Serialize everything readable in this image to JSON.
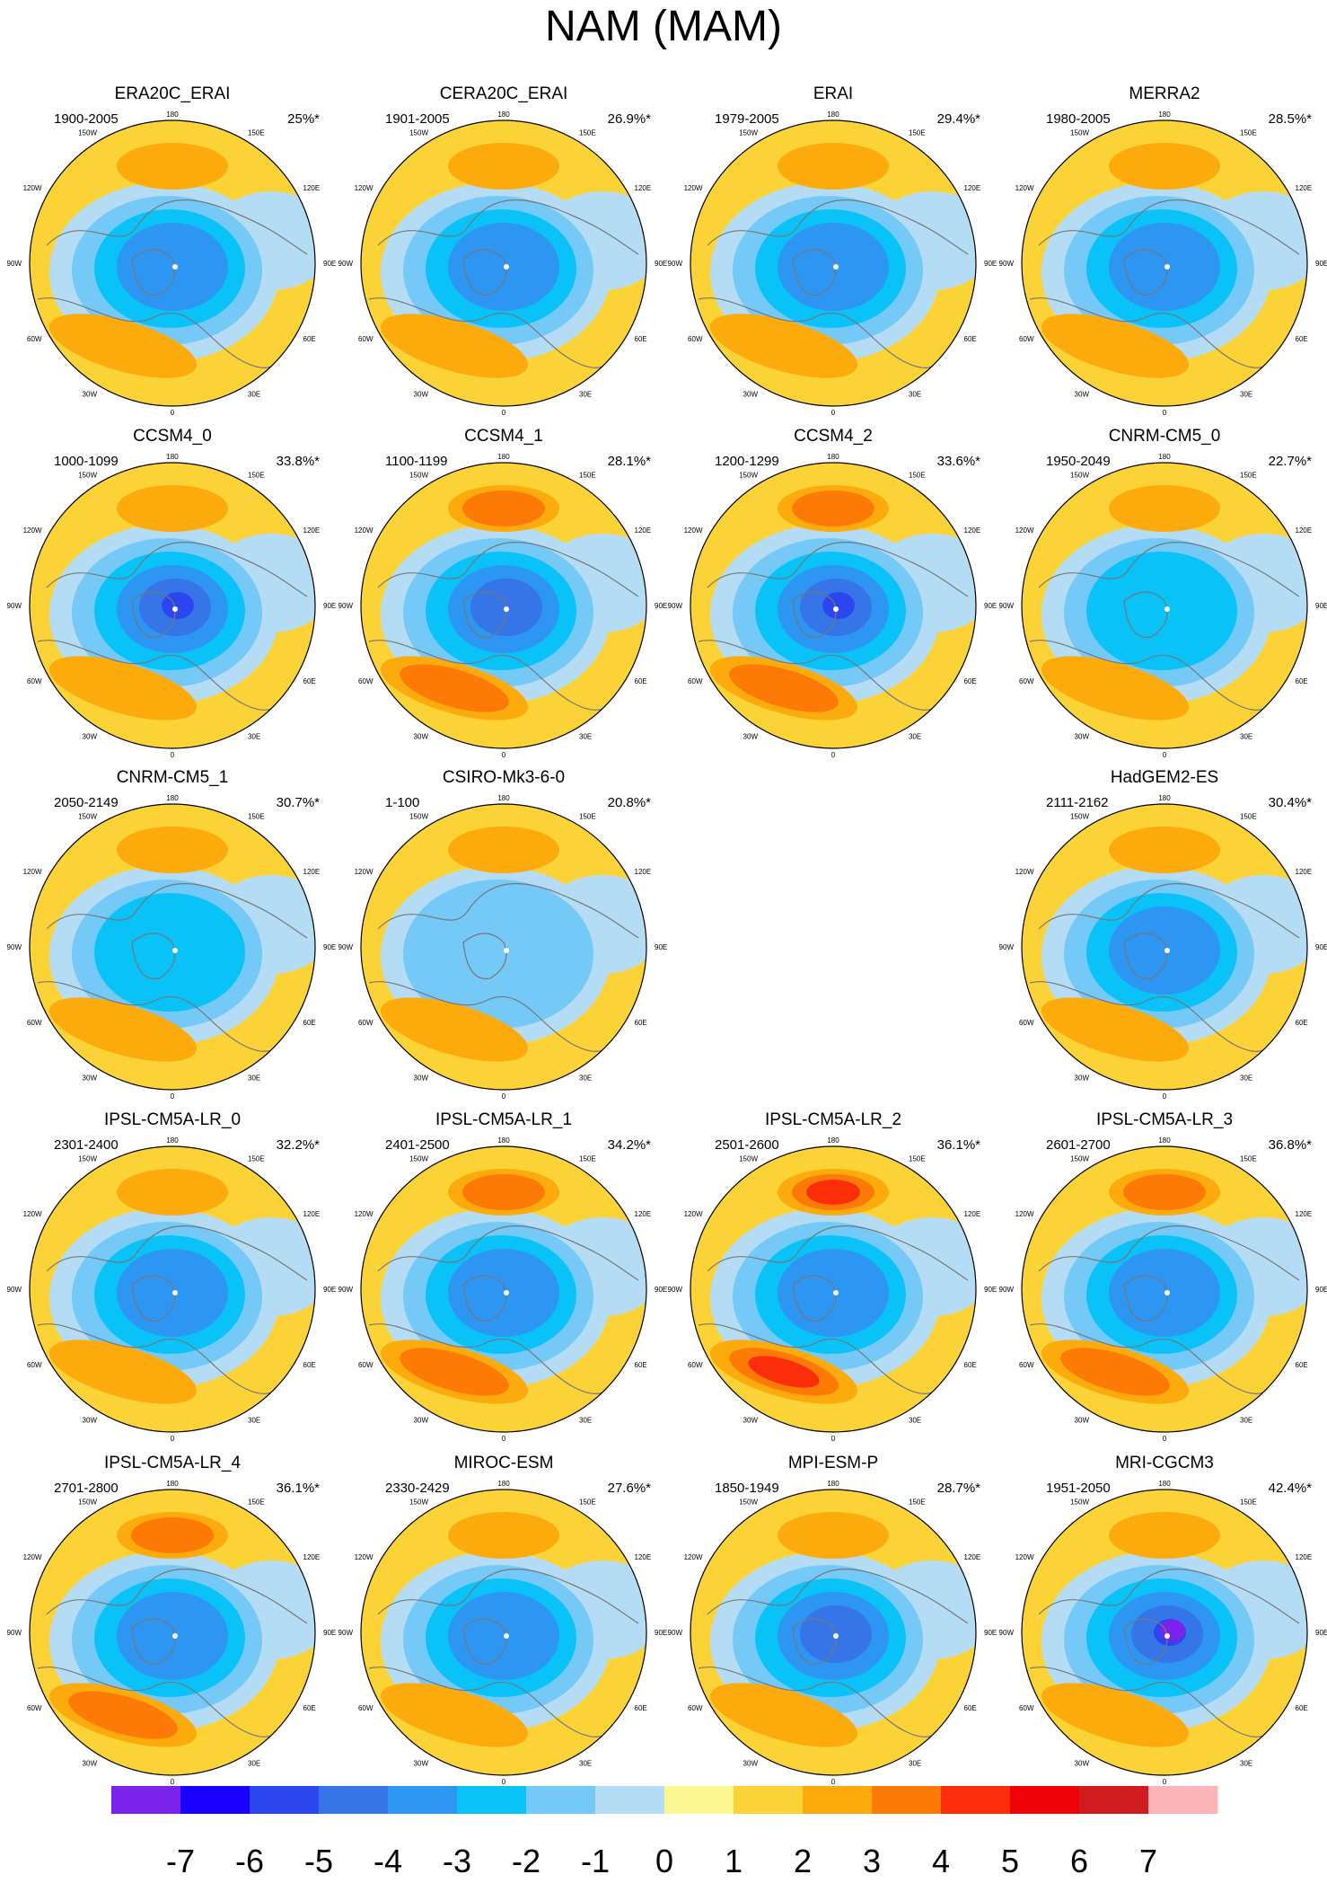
{
  "title": "NAM (MAM)",
  "chart_data": {
    "type": "contour-map-panels",
    "projection": "north polar stereographic",
    "field": "NAM loading pattern (MAM)",
    "longitude_labels": [
      "180",
      "150E",
      "120E",
      "90E",
      "60E",
      "30E",
      "0",
      "30W",
      "60W",
      "90W",
      "120W",
      "150W"
    ],
    "panels": [
      {
        "title": "ERA20C_ERAI",
        "period": "1900-2005",
        "percent": "25%*",
        "min_level": -4,
        "max_level": 2
      },
      {
        "title": "CERA20C_ERAI",
        "period": "1901-2005",
        "percent": "26.9%*",
        "min_level": -4,
        "max_level": 2
      },
      {
        "title": "ERAI",
        "period": "1979-2005",
        "percent": "29.4%*",
        "min_level": -4,
        "max_level": 2
      },
      {
        "title": "MERRA2",
        "period": "1980-2005",
        "percent": "28.5%*",
        "min_level": -4,
        "max_level": 2
      },
      {
        "title": "CCSM4_0",
        "period": "1000-1099",
        "percent": "33.8%*",
        "min_level": -6,
        "max_level": 2
      },
      {
        "title": "CCSM4_1",
        "period": "1100-1199",
        "percent": "28.1%*",
        "min_level": -5,
        "max_level": 3
      },
      {
        "title": "CCSM4_2",
        "period": "1200-1299",
        "percent": "33.6%*",
        "min_level": -6,
        "max_level": 3
      },
      {
        "title": "CNRM-CM5_0",
        "period": "1950-2049",
        "percent": "22.7%*",
        "min_level": -3,
        "max_level": 2
      },
      {
        "title": "CNRM-CM5_1",
        "period": "2050-2149",
        "percent": "30.7%*",
        "min_level": -3,
        "max_level": 2
      },
      {
        "title": "CSIRO-Mk3-6-0",
        "period": "1-100",
        "percent": "20.8%*",
        "min_level": -2,
        "max_level": 2
      },
      null,
      {
        "title": "HadGEM2-ES",
        "period": "2111-2162",
        "percent": "30.4%*",
        "min_level": -4,
        "max_level": 2
      },
      {
        "title": "IPSL-CM5A-LR_0",
        "period": "2301-2400",
        "percent": "32.2%*",
        "min_level": -4,
        "max_level": 2
      },
      {
        "title": "IPSL-CM5A-LR_1",
        "period": "2401-2500",
        "percent": "34.2%*",
        "min_level": -4,
        "max_level": 3
      },
      {
        "title": "IPSL-CM5A-LR_2",
        "period": "2501-2600",
        "percent": "36.1%*",
        "min_level": -4,
        "max_level": 4
      },
      {
        "title": "IPSL-CM5A-LR_3",
        "period": "2601-2700",
        "percent": "36.8%*",
        "min_level": -4,
        "max_level": 3
      },
      {
        "title": "IPSL-CM5A-LR_4",
        "period": "2701-2800",
        "percent": "36.1%*",
        "min_level": -4,
        "max_level": 3
      },
      {
        "title": "MIROC-ESM",
        "period": "2330-2429",
        "percent": "27.6%*",
        "min_level": -4,
        "max_level": 2
      },
      {
        "title": "MPI-ESM-P",
        "period": "1850-1949",
        "percent": "28.7%*",
        "min_level": -5,
        "max_level": 2
      },
      {
        "title": "MRI-CGCM3",
        "period": "1951-2050",
        "percent": "42.4%*",
        "min_level": -7,
        "max_level": 2
      }
    ],
    "colorbar": {
      "labels": [
        "-7",
        "-6",
        "-5",
        "-4",
        "-3",
        "-2",
        "-1",
        "0",
        "1",
        "2",
        "3",
        "4",
        "5",
        "6",
        "7"
      ],
      "colors": [
        "#7b22ec",
        "#1a00ff",
        "#2b46ee",
        "#3575e8",
        "#2c96f2",
        "#08c2f8",
        "#75c9f6",
        "#b4ddf5",
        "#fdf792",
        "#fcd336",
        "#fdab0c",
        "#fd7a06",
        "#fc2e09",
        "#ee0206",
        "#d01c1e",
        "#fcb5b6"
      ]
    }
  }
}
